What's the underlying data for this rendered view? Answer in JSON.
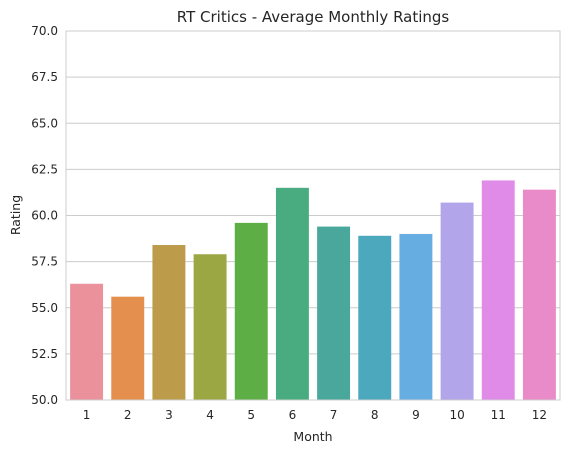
{
  "chart_data": {
    "type": "bar",
    "title": "RT Critics - Average Monthly Ratings",
    "xlabel": "Month",
    "ylabel": "Rating",
    "categories": [
      "1",
      "2",
      "3",
      "4",
      "5",
      "6",
      "7",
      "8",
      "9",
      "10",
      "11",
      "12"
    ],
    "values": [
      56.3,
      55.6,
      58.4,
      57.9,
      59.6,
      61.5,
      59.4,
      58.9,
      59.0,
      60.7,
      61.9,
      61.4
    ],
    "ylim": [
      50.0,
      70.0
    ],
    "yticks": [
      "50.0",
      "52.5",
      "55.0",
      "57.5",
      "60.0",
      "62.5",
      "65.0",
      "67.5",
      "70.0"
    ],
    "grid": true,
    "colors": [
      "#ea919b",
      "#e48f4e",
      "#bc9b4a",
      "#9ba743",
      "#5eae46",
      "#48ac80",
      "#4aa79c",
      "#4ba8bd",
      "#66aee2",
      "#b2a5ea",
      "#e08be8",
      "#e98bc8"
    ]
  }
}
